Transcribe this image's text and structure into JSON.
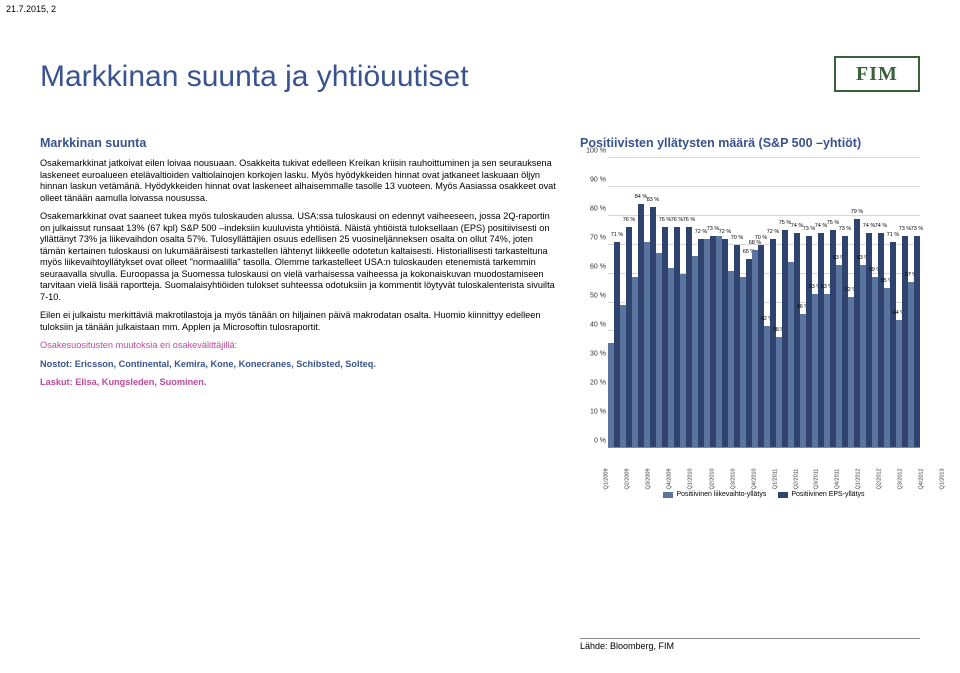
{
  "date": "21.7.2015, 2",
  "logo": "FIM",
  "logo_color": "#3b613a",
  "title": "Markkinan suunta ja yhtiöuutiset",
  "title_color": "#38538f",
  "section_heading": "Markkinan suunta",
  "para1": "Osakemarkkinat jatkoivat eilen loivaa nousuaan. Osakkeita tukivat edelleen Kreikan kriisin rauhoittuminen ja sen seurauksena laskeneet euroalueen etelävaltioiden valtiolainojen korkojen lasku. Myös hyödykkeiden hinnat ovat jatkaneet laskuaan öljyn hinnan laskun vetämänä. Hyödykkeiden hinnat ovat laskeneet alhaisemmalle tasolle 13 vuoteen. Myös Aasiassa osakkeet ovat olleet tänään aamulla loivassa nousussa.",
  "para2": "Osakemarkkinat ovat saaneet tukea myös tuloskauden alussa. USA:ssa tuloskausi on edennyt vaiheeseen, jossa 2Q-raportin on julkaissut runsaat 13% (67 kpl) S&P 500 –indeksiin kuuluvista yhtiöistä. Näistä yhtiöistä tuloksellaan (EPS) positiivisesti on yllättänyt 73% ja liikevaihdon osalta 57%. Tulosyllättäjien osuus edellisen 25 vuosineljänneksen osalta on ollut 74%, joten tämän kertainen tuloskausi on lukumääräisesti tarkastellen lähtenyt liikkeelle odotetun kaltaisesti. Historiallisesti tarkasteltuna myös liikevaihtoyllätykset ovat olleet \"normaalilla\" tasolla. Olemme tarkastelleet USA:n tuloskauden etenemistä tarkemmin seuraavalla sivulla. Euroopassa ja Suomessa tuloskausi on vielä varhaisessa vaiheessa ja kokonaiskuvan muodostamiseen tarvitaan vielä lisää raportteja. Suomalaisyhtiöiden tulokset suhteessa odotuksiin ja kommentit löytyvät tuloskalenterista sivuilta 7-10.",
  "para3": "Eilen ei julkaistu merkittäviä makrotilastoja ja myös tänään on hiljainen päivä makrodatan osalta. Huomio kiinnittyy edelleen tuloksiin ja tänään julkaistaan mm. Applen ja Microsoftin tulosraportit.",
  "recs_heading": "Osakesuositusten muutoksia eri osakevälittäjillä:",
  "nostot_label": "Nostot:",
  "nostot_list": "Ericsson, Continental, Kemira, Kone, Konecranes, Schibsted, Solteq.",
  "laskut_label": "Laskut:",
  "laskut_list": "Elisa, Kungsleden, Suominen.",
  "pink_color": "#c04a9d",
  "chart_title": "Positiivisten yllätysten määrä (S&P 500 –yhtiöt)",
  "chart": {
    "ylim": [
      0,
      100
    ],
    "yticks": [
      "0 %",
      "10 %",
      "20 %",
      "30 %",
      "40 %",
      "50 %",
      "60 %",
      "70 %",
      "80 %",
      "90 %",
      "100 %"
    ],
    "categories": [
      "Q1/2009",
      "Q2/2009",
      "Q3/2009",
      "Q4/2009",
      "Q1/2010",
      "Q2/2010",
      "Q3/2010",
      "Q4/2010",
      "Q1/2011",
      "Q2/2011",
      "Q3/2011",
      "Q4/2011",
      "Q1/2012",
      "Q2/2012",
      "Q3/2012",
      "Q4/2012",
      "Q1/2013",
      "Q2/2013",
      "Q3/2013",
      "Q4/2013",
      "Q1/2014",
      "Q2/2014",
      "Q3/2014",
      "Q4/2014",
      "Q1/2015",
      "Q2/2015"
    ],
    "series1_name": "Positiivinen liikevaihto-yllätys",
    "series1_color": "#5b739f",
    "series1_values": [
      36,
      49,
      59,
      71,
      67,
      62,
      60,
      66,
      72,
      73,
      61,
      59,
      68,
      42,
      38,
      64,
      46,
      53,
      53,
      63,
      52,
      63,
      59,
      55,
      44,
      57
    ],
    "series1_labels": [
      "",
      "",
      "",
      "",
      "",
      "",
      "",
      "",
      "",
      "",
      "",
      "",
      "68",
      "42",
      "38",
      "",
      "46",
      "53",
      "53",
      "63",
      "52",
      "63",
      "59",
      "55",
      "44",
      "57"
    ],
    "series2_name": "Positiivinen EPS-yllätys",
    "series2_color": "#2e446f",
    "series2_values": [
      71,
      76,
      84,
      83,
      76,
      76,
      76,
      72,
      73,
      72,
      70,
      65,
      70,
      72,
      75,
      74,
      73,
      74,
      75,
      73,
      79,
      74,
      74,
      71,
      73,
      73
    ],
    "series2_labels": [
      "71",
      "76",
      "84",
      "83",
      "76",
      "76",
      "76",
      "72",
      "73",
      "72",
      "70",
      "65",
      "70",
      "72",
      "75",
      "74",
      "73",
      "74",
      "75",
      "73",
      "79",
      "74",
      "74",
      "71",
      "73",
      "73"
    ],
    "grid_color": "#d8d8d8"
  },
  "source": "Lähde: Bloomberg, FIM"
}
